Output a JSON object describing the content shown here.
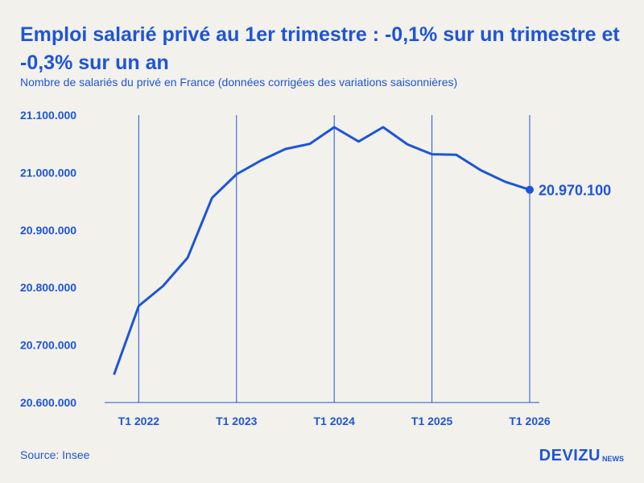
{
  "chart_data": {
    "type": "line",
    "title": "Emploi salarié privé au 1er trimestre : -0,1% sur un trimestre et -0,3% sur un an",
    "subtitle": "Nombre de salariés du privé en France (données corrigées des variations saisonnières)",
    "xlabel": "",
    "ylabel": "",
    "ylim": [
      20600000,
      21100000
    ],
    "y_ticks": [
      20600000,
      20700000,
      20800000,
      20900000,
      21000000,
      21100000
    ],
    "y_tick_labels": [
      "20.600.000",
      "20.700.000",
      "20.800.000",
      "20.900.000",
      "21.000.000",
      "21.100.000"
    ],
    "x": [
      "T4 2021",
      "T1 2022",
      "T2 2022",
      "T3 2022",
      "T4 2022",
      "T1 2023",
      "T2 2023",
      "T3 2023",
      "T4 2023",
      "T1 2024",
      "T2 2024",
      "T3 2024",
      "T4 2024",
      "T1 2025",
      "T2 2025",
      "T3 2025",
      "T4 2025",
      "T1 2026"
    ],
    "x_tick_labels": [
      "T1 2022",
      "T1 2023",
      "T1 2024",
      "T1 2025",
      "T1 2026"
    ],
    "series": [
      {
        "values": [
          20650000,
          20768000,
          20803000,
          20852000,
          20956000,
          20997000,
          21021000,
          21041000,
          21050000,
          21079000,
          21054000,
          21079000,
          21049000,
          21032000,
          21031000,
          21004000,
          20984000,
          20970100
        ]
      }
    ],
    "end_label": "20.970.100",
    "grid": "vertical lines at T1 of each year",
    "color": "#1d55d8"
  },
  "footer": {
    "source": "Source: Insee",
    "logo_main": "DEVIZU",
    "logo_sub": "NEWS"
  }
}
